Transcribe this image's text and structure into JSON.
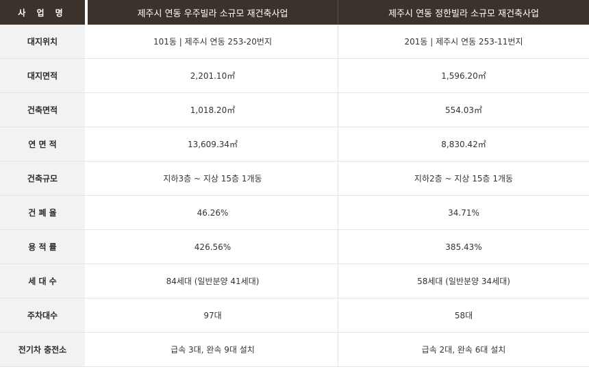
{
  "header": {
    "label": "사 업 명",
    "project_a": "제주시 연동 우주빌라 소규모 재건축사업",
    "project_b": "제주시 연동 정한빌라 소규모 재건축사업"
  },
  "rows": [
    {
      "label": "대지위치",
      "a": "101동 | 제주시 연동 253-20번지",
      "b": "201동 | 제주시 연동 253-11번지"
    },
    {
      "label": "대지면적",
      "a": "2,201.10㎡",
      "b": "1,596.20㎡"
    },
    {
      "label": "건축면적",
      "a": "1,018.20㎡",
      "b": "554.03㎡"
    },
    {
      "label": "연 면 적",
      "a": "13,609.34㎡",
      "b": "8,830.42㎡"
    },
    {
      "label": "건축규모",
      "a": "지하3층 ~ 지상 15층 1개동",
      "b": "지하2층 ~ 지상 15층 1개동"
    },
    {
      "label": "건 폐 율",
      "a": "46.26%",
      "b": "34.71%"
    },
    {
      "label": "용 적 률",
      "a": "426.56%",
      "b": "385.43%"
    },
    {
      "label": "세 대 수",
      "a": "84세대 (일반분양 41세대)",
      "b": "58세대 (일반분양 34세대)"
    },
    {
      "label": "주차대수",
      "a": "97대",
      "b": "58대"
    },
    {
      "label": "전기차 충전소",
      "a": "급속 3대, 완속 9대 설치",
      "b": "급속 2대, 완속 6대 설치"
    }
  ]
}
